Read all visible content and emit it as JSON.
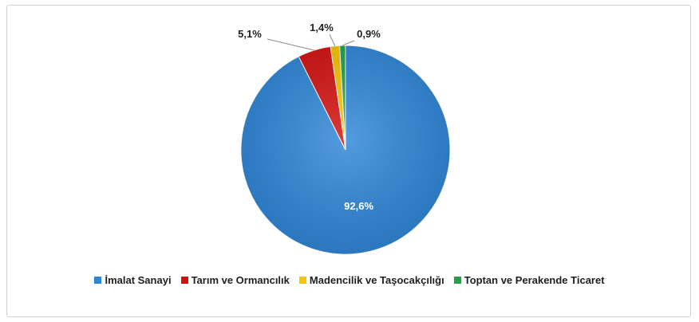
{
  "chart_data": {
    "type": "pie",
    "title": "",
    "categories": [
      "İmalat Sanayi",
      "Tarım ve Ormancılık",
      "Madencilik ve Taşocakçılığı",
      "Toptan ve Perakende Ticaret"
    ],
    "values": [
      92.6,
      5.1,
      1.4,
      0.9
    ],
    "value_labels": [
      "92,6%",
      "5,1%",
      "1,4%",
      "0,9%"
    ],
    "colors": [
      "#2e86d8",
      "#d40f0f",
      "#f5c400",
      "#1ea34a"
    ],
    "legend_position": "bottom",
    "start_angle": "top, clockwise"
  }
}
